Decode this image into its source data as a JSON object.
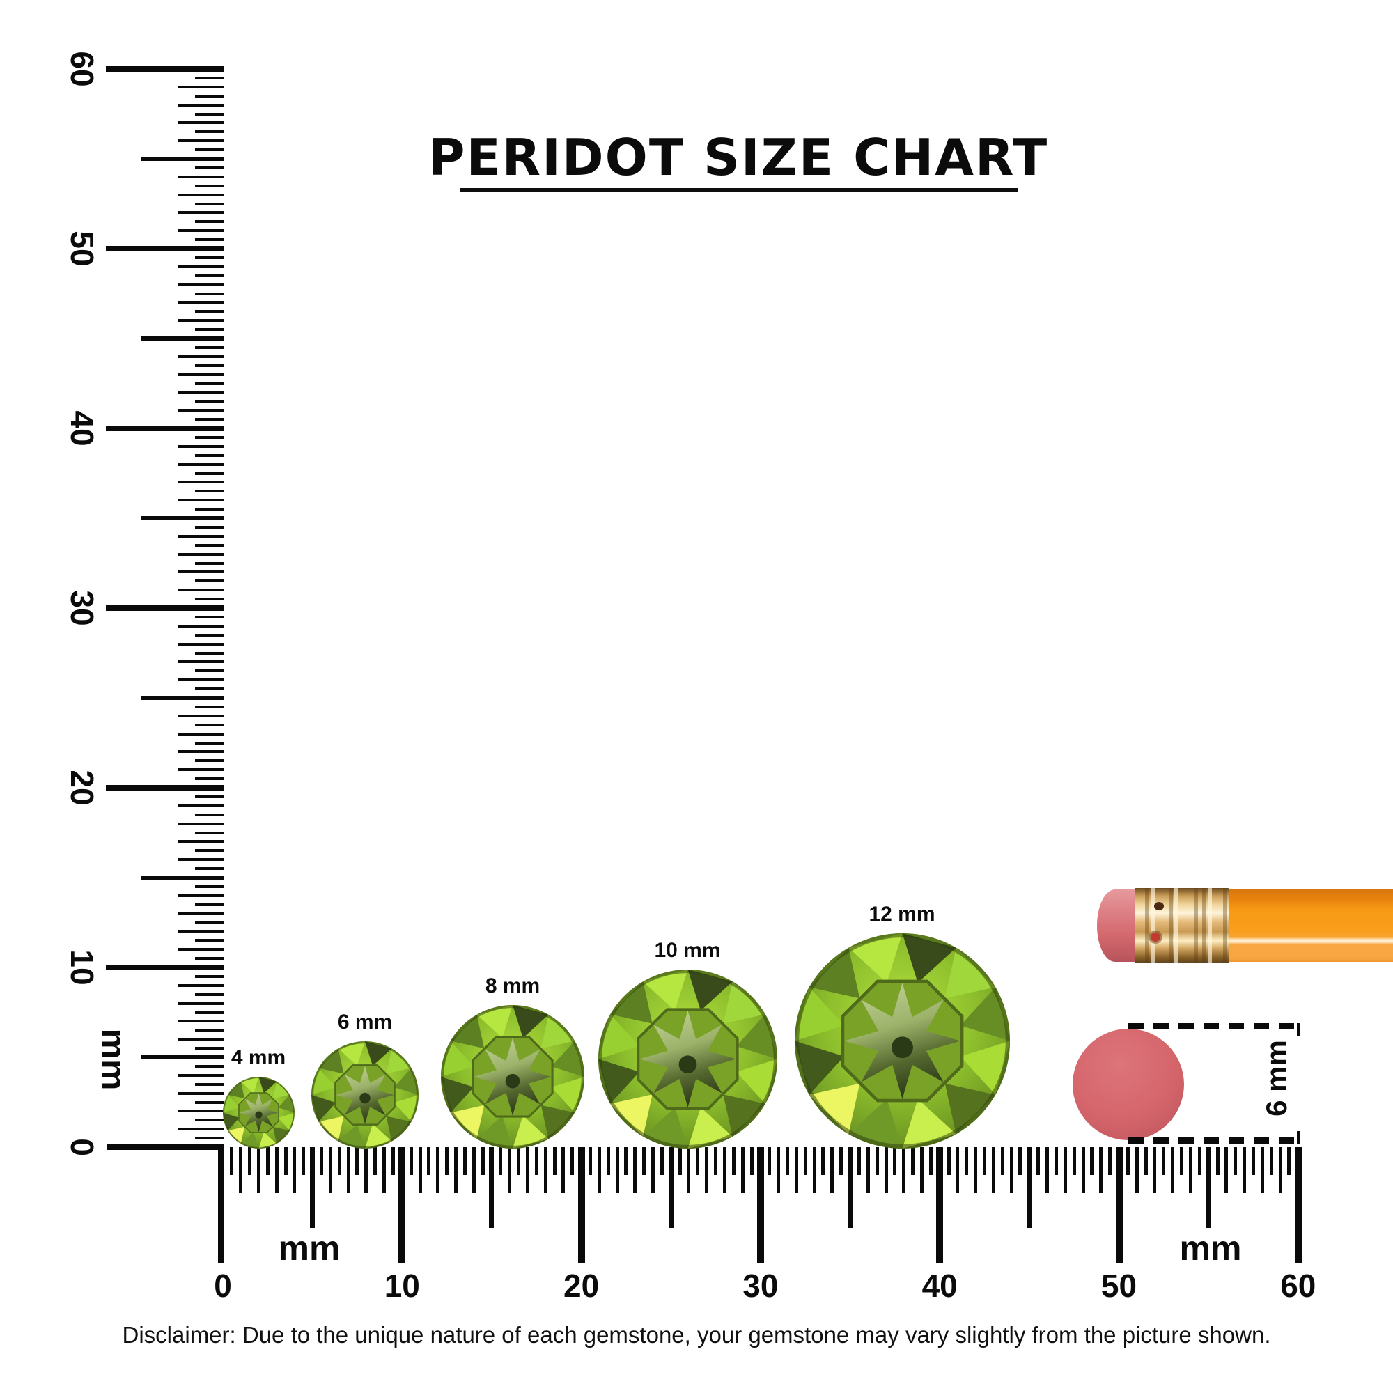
{
  "title": {
    "text": "PERIDOT SIZE CHART"
  },
  "left_ruler": {
    "unit": "mm",
    "labels": [
      {
        "text": "60",
        "mm": 60
      },
      {
        "text": "50",
        "mm": 50
      },
      {
        "text": "40",
        "mm": 40
      },
      {
        "text": "30",
        "mm": 30
      },
      {
        "text": "20",
        "mm": 20
      },
      {
        "text": "10",
        "mm": 10
      },
      {
        "text": "0",
        "mm": 0
      }
    ]
  },
  "bottom_ruler": {
    "unit_left": "mm",
    "unit_right": "mm",
    "labels": [
      {
        "text": "0",
        "mm": 0
      },
      {
        "text": "10",
        "mm": 10
      },
      {
        "text": "20",
        "mm": 20
      },
      {
        "text": "30",
        "mm": 30
      },
      {
        "text": "40",
        "mm": 40
      },
      {
        "text": "50",
        "mm": 50
      },
      {
        "text": "60",
        "mm": 60
      }
    ]
  },
  "gems": [
    {
      "label": "4 mm",
      "size_mm": 4
    },
    {
      "label": "6 mm",
      "size_mm": 6
    },
    {
      "label": "8 mm",
      "size_mm": 8
    },
    {
      "label": "10 mm",
      "size_mm": 10
    },
    {
      "label": "12 mm",
      "size_mm": 12
    }
  ],
  "eraser_measure": {
    "label": "6 mm",
    "diameter_mm": 6
  },
  "disclaimer": "Disclaimer: Due to the unique nature of each gemstone, your gemstone may vary slightly from the picture shown.",
  "colors": {
    "gem_bright": "#a9dd36",
    "gem_dark": "#42581c",
    "gem_yellow": "#ecf562",
    "gem_star_light": "#c3d49a",
    "gem_star_dark": "#2c3a18",
    "pencil_orange": "#f89a15",
    "ferrule_gold": "#e3b877",
    "eraser_pink": "#d4656b",
    "ink": "#0a0a0a"
  }
}
